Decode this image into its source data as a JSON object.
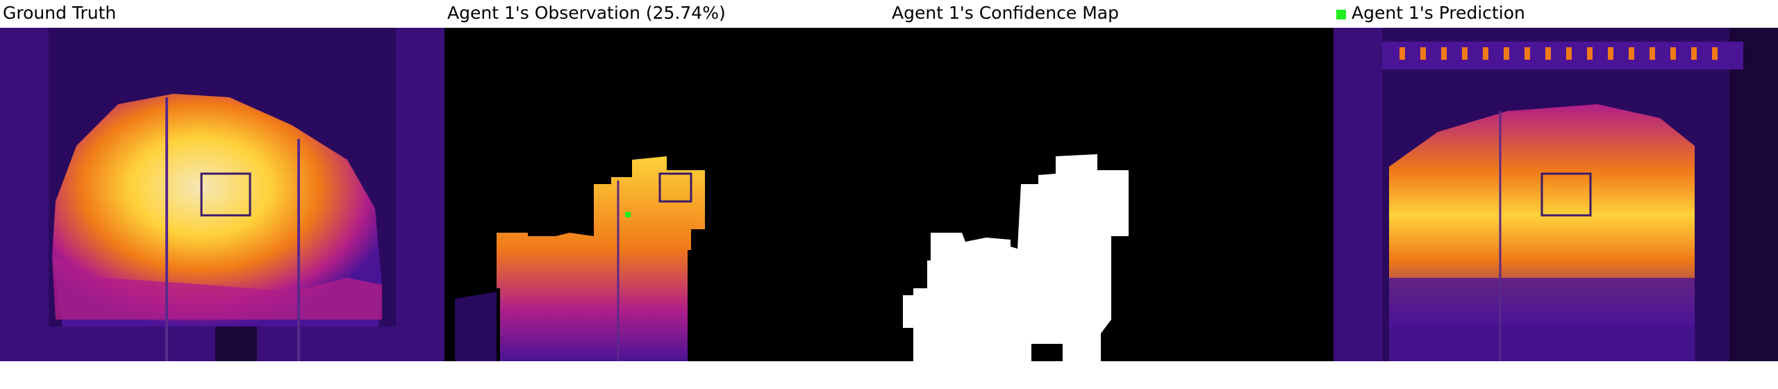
{
  "panels": [
    {
      "title": "Ground Truth"
    },
    {
      "title": "Agent 1's Observation (25.74%)"
    },
    {
      "title": "Agent 1's Confidence Map"
    },
    {
      "title": "Agent 1's Prediction",
      "legend_color": "#22ee22"
    }
  ],
  "colors": {
    "background_dark": "#1a0638",
    "purple": "#4b1496",
    "magenta": "#b01e8a",
    "orange": "#f07a18",
    "yellow": "#ffd23a",
    "pale": "#f6e8b8",
    "mask": "#ffffff",
    "empty": "#000000",
    "marker": "#22ee22"
  }
}
